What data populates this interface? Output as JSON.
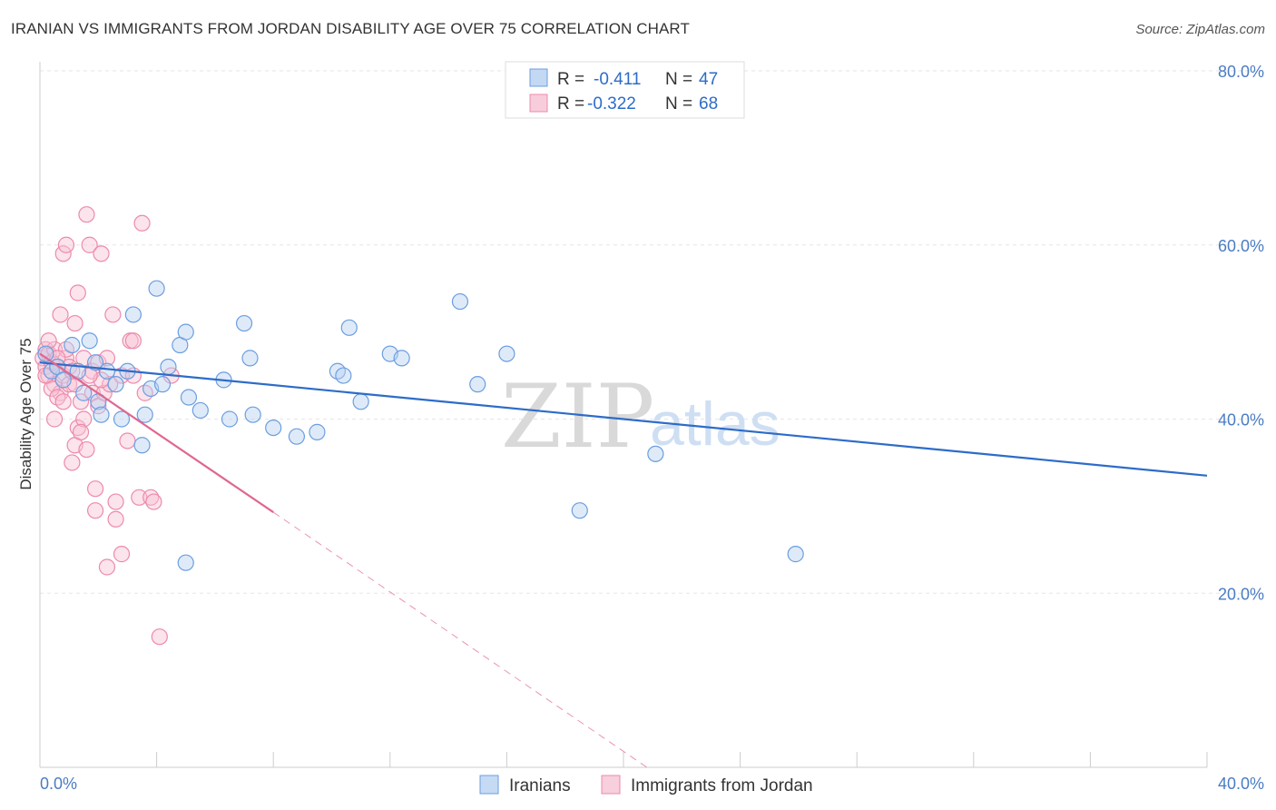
{
  "header": {
    "title": "IRANIAN VS IMMIGRANTS FROM JORDAN DISABILITY AGE OVER 75 CORRELATION CHART",
    "source": "Source: ZipAtlas.com"
  },
  "watermark": {
    "zip": "ZIP",
    "atlas": "atlas"
  },
  "legend_box": {
    "rows": [
      {
        "r_label": "R =",
        "r_value": "-0.411",
        "n_label": "N =",
        "n_value": "47",
        "color": "#aac8ee"
      },
      {
        "r_label": "R =",
        "r_value": "-0.322",
        "n_label": "N =",
        "n_value": "68",
        "color": "#f5b8cc"
      }
    ]
  },
  "chart_data": {
    "type": "scatter",
    "title": "IRANIAN VS IMMIGRANTS FROM JORDAN DISABILITY AGE OVER 75 CORRELATION CHART",
    "xlabel": "",
    "ylabel": "Disability Age Over 75",
    "xlim": [
      0,
      40
    ],
    "ylim": [
      0,
      80
    ],
    "x_tick_labels": [
      "0.0%",
      "40.0%"
    ],
    "y_ticks": [
      20,
      40,
      60,
      80
    ],
    "y_tick_labels": [
      "20.0%",
      "40.0%",
      "60.0%",
      "80.0%"
    ],
    "grid": true,
    "legend_position": "bottom",
    "colors": {
      "iranians": "#6b9ee0",
      "jordan": "#ec8aab",
      "iranians_line": "#2d6cc8",
      "jordan_line": "#e0678f"
    },
    "series": [
      {
        "name": "Iranians",
        "points": [
          [
            0.2,
            47.5
          ],
          [
            0.4,
            45.5
          ],
          [
            0.6,
            46
          ],
          [
            0.8,
            44.5
          ],
          [
            1.1,
            48.5
          ],
          [
            1.3,
            45.5
          ],
          [
            1.7,
            49
          ],
          [
            1.9,
            46.5
          ],
          [
            2.0,
            42
          ],
          [
            2.1,
            40.5
          ],
          [
            2.3,
            45.5
          ],
          [
            2.6,
            44
          ],
          [
            2.8,
            40
          ],
          [
            3.0,
            45.5
          ],
          [
            3.2,
            52
          ],
          [
            3.5,
            37
          ],
          [
            3.6,
            40.5
          ],
          [
            3.8,
            43.5
          ],
          [
            4.0,
            55
          ],
          [
            4.2,
            44
          ],
          [
            4.4,
            46
          ],
          [
            4.8,
            48.5
          ],
          [
            5.0,
            50
          ],
          [
            5.1,
            42.5
          ],
          [
            5.5,
            41
          ],
          [
            6.3,
            44.5
          ],
          [
            6.5,
            40
          ],
          [
            7.0,
            51
          ],
          [
            7.2,
            47
          ],
          [
            7.3,
            40.5
          ],
          [
            8.0,
            39
          ],
          [
            8.8,
            38
          ],
          [
            9.5,
            38.5
          ],
          [
            10.2,
            45.5
          ],
          [
            10.6,
            50.5
          ],
          [
            11.0,
            42
          ],
          [
            12.0,
            47.5
          ],
          [
            12.4,
            47
          ],
          [
            14.4,
            53.5
          ],
          [
            15.0,
            44
          ],
          [
            16.0,
            47.5
          ],
          [
            18.5,
            29.5
          ],
          [
            21.1,
            36
          ],
          [
            25.9,
            24.5
          ],
          [
            10.4,
            45
          ],
          [
            5.0,
            23.5
          ],
          [
            1.5,
            43
          ]
        ],
        "trend": {
          "x": [
            0,
            40
          ],
          "y": [
            46.5,
            33.5
          ]
        }
      },
      {
        "name": "Immigrants from Jordan",
        "points": [
          [
            0.1,
            47
          ],
          [
            0.2,
            46
          ],
          [
            0.2,
            48
          ],
          [
            0.3,
            45
          ],
          [
            0.3,
            47.5
          ],
          [
            0.4,
            46.5
          ],
          [
            0.5,
            48
          ],
          [
            0.5,
            44
          ],
          [
            0.6,
            46
          ],
          [
            0.7,
            52
          ],
          [
            0.7,
            43
          ],
          [
            0.8,
            59
          ],
          [
            0.8,
            45
          ],
          [
            0.9,
            60
          ],
          [
            0.9,
            47
          ],
          [
            1.0,
            44
          ],
          [
            1.1,
            35
          ],
          [
            1.2,
            51
          ],
          [
            1.2,
            37
          ],
          [
            1.3,
            54.5
          ],
          [
            1.3,
            39
          ],
          [
            1.4,
            42
          ],
          [
            1.5,
            40
          ],
          [
            1.5,
            47
          ],
          [
            1.6,
            63.5
          ],
          [
            1.6,
            36.5
          ],
          [
            1.7,
            60
          ],
          [
            1.8,
            45.5
          ],
          [
            1.8,
            43
          ],
          [
            1.9,
            32
          ],
          [
            1.9,
            29.5
          ],
          [
            2.0,
            41.5
          ],
          [
            2.0,
            46.5
          ],
          [
            2.1,
            59
          ],
          [
            2.2,
            43
          ],
          [
            2.3,
            23
          ],
          [
            2.4,
            44
          ],
          [
            2.5,
            52
          ],
          [
            2.6,
            30.5
          ],
          [
            2.6,
            28.5
          ],
          [
            2.8,
            45
          ],
          [
            2.8,
            24.5
          ],
          [
            3.0,
            37.5
          ],
          [
            3.1,
            49
          ],
          [
            3.2,
            49
          ],
          [
            3.2,
            45
          ],
          [
            3.4,
            31
          ],
          [
            3.5,
            62.5
          ],
          [
            3.6,
            43
          ],
          [
            3.8,
            31
          ],
          [
            3.9,
            30.5
          ],
          [
            4.1,
            15
          ],
          [
            0.4,
            43.5
          ],
          [
            0.6,
            42.5
          ],
          [
            1.0,
            46
          ],
          [
            1.2,
            44
          ],
          [
            0.3,
            49
          ],
          [
            0.5,
            40
          ],
          [
            0.8,
            42
          ],
          [
            1.4,
            38.5
          ],
          [
            1.1,
            45.5
          ],
          [
            0.9,
            48
          ],
          [
            2.1,
            44.5
          ],
          [
            0.2,
            45
          ],
          [
            0.6,
            47
          ],
          [
            1.7,
            45
          ],
          [
            2.3,
            47
          ],
          [
            4.5,
            45
          ]
        ],
        "trend": {
          "x": [
            0,
            8.0
          ],
          "y": [
            47.5,
            29.3
          ]
        },
        "trend_dashed": {
          "x": [
            8.0,
            20.8
          ],
          "y": [
            29.3,
            0
          ]
        }
      }
    ]
  },
  "bottom_legend": [
    {
      "label": "Iranians"
    },
    {
      "label": "Immigrants from Jordan"
    }
  ]
}
